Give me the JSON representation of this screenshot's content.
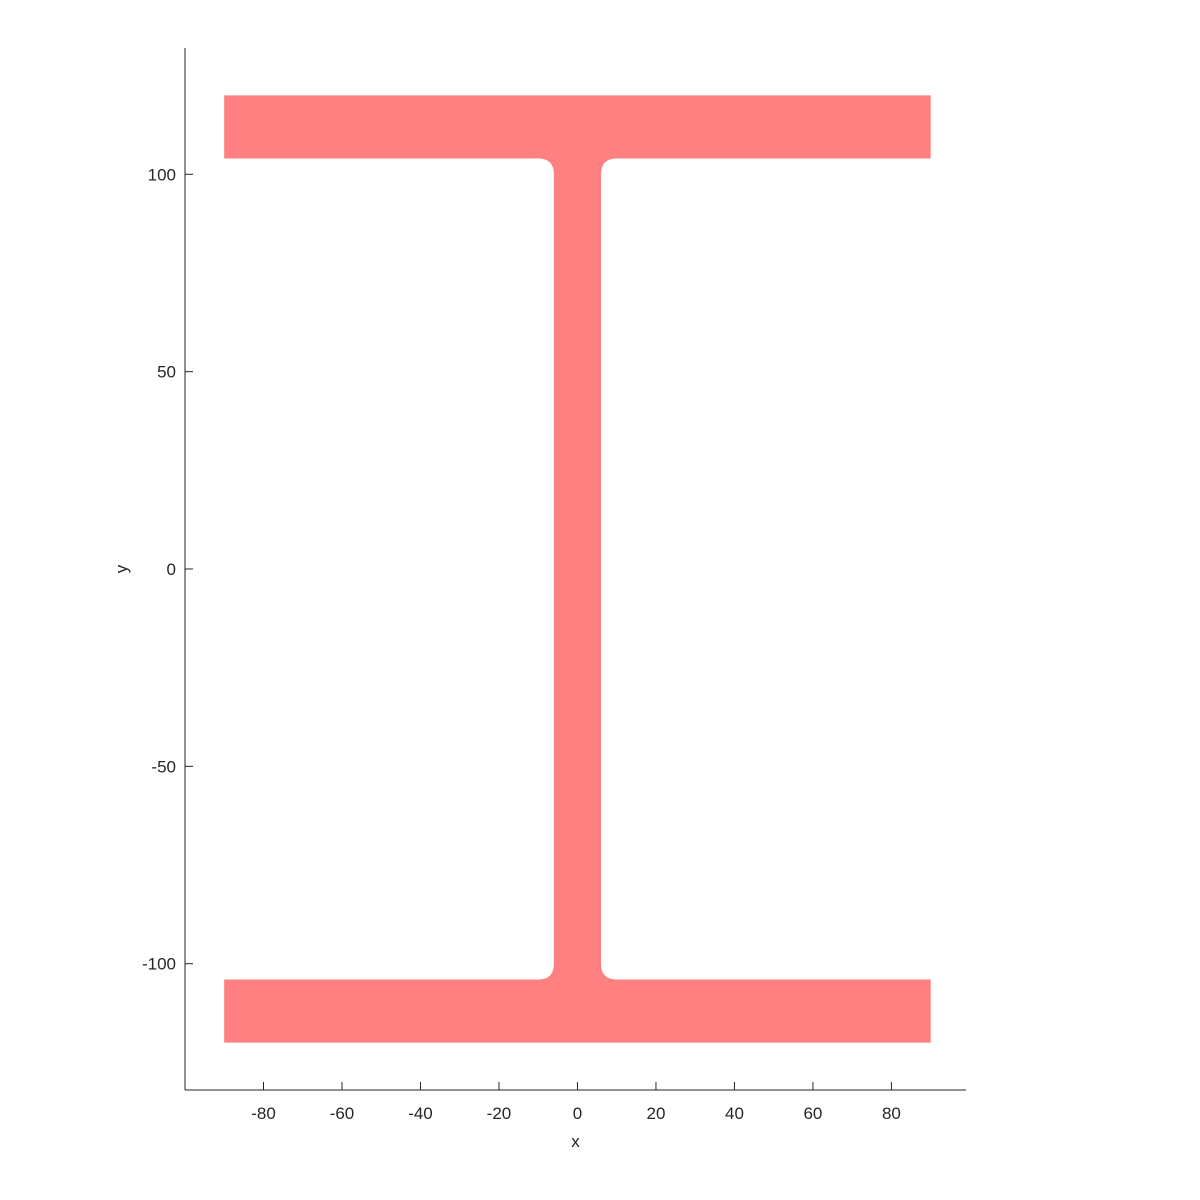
{
  "chart_data": {
    "type": "area",
    "title": "",
    "xlabel": "x",
    "ylabel": "y",
    "xlim": [
      -100,
      99
    ],
    "ylim": [
      -132,
      132
    ],
    "xticks": [
      -80,
      -60,
      -40,
      -20,
      0,
      20,
      40,
      60,
      80
    ],
    "yticks": [
      -100,
      -50,
      0,
      50,
      100
    ],
    "grid": false,
    "legend": "none",
    "fill_color": "#ff8080",
    "series": [
      {
        "shape": "I-beam cross-section",
        "outline": [
          [
            -90,
            120
          ],
          [
            90,
            120
          ],
          [
            90,
            104
          ],
          [
            10,
            104
          ],
          [
            6,
            100
          ],
          [
            6,
            -100
          ],
          [
            10,
            -104
          ],
          [
            90,
            -104
          ],
          [
            90,
            -120
          ],
          [
            -90,
            -120
          ],
          [
            -90,
            -104
          ],
          [
            -10,
            -104
          ],
          [
            -6,
            -100
          ],
          [
            -6,
            100
          ],
          [
            -10,
            104
          ],
          [
            -90,
            104
          ]
        ]
      }
    ]
  }
}
